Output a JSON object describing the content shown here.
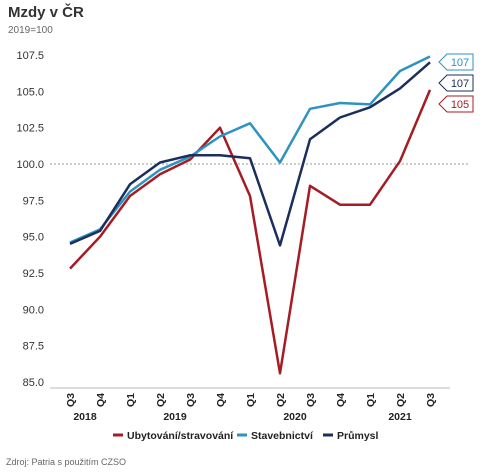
{
  "title": "Mzdy v ČR",
  "subtitle": "2019=100",
  "source": "Zdroj: Patria s použitím CZSO",
  "chart_data": {
    "type": "line",
    "categories": [
      "Q3",
      "Q4",
      "Q1",
      "Q2",
      "Q3",
      "Q4",
      "Q1",
      "Q2",
      "Q3",
      "Q4",
      "Q1",
      "Q2",
      "Q3"
    ],
    "year_labels": [
      {
        "label": "2018",
        "from": 0,
        "to": 1
      },
      {
        "label": "2019",
        "from": 2,
        "to": 5
      },
      {
        "label": "2020",
        "from": 6,
        "to": 9
      },
      {
        "label": "2021",
        "from": 10,
        "to": 12
      }
    ],
    "ylim": [
      85.0,
      107.5
    ],
    "yticks": [
      "107.5",
      "105.0",
      "102.5",
      "100.0",
      "97.5",
      "95.0",
      "92.5",
      "90.0",
      "87.5",
      "85.0"
    ],
    "reference_line": 100.0,
    "series": [
      {
        "name": "Ubytování/stravování",
        "color": "#a51c24",
        "values": [
          92.8,
          95.0,
          97.8,
          99.3,
          100.3,
          102.5,
          97.8,
          85.6,
          98.5,
          97.2,
          97.2,
          100.2,
          105.1
        ],
        "end_label": "105"
      },
      {
        "name": "Stavebnictví",
        "color": "#2e93c0",
        "values": [
          94.6,
          95.5,
          98.1,
          99.6,
          100.5,
          101.9,
          102.8,
          100.1,
          103.8,
          104.2,
          104.1,
          106.4,
          107.4
        ],
        "end_label": "107"
      },
      {
        "name": "Průmysl",
        "color": "#1b2f5c",
        "values": [
          94.5,
          95.4,
          98.6,
          100.1,
          100.6,
          100.6,
          100.4,
          94.4,
          101.7,
          103.2,
          103.9,
          105.2,
          107.0
        ],
        "end_label": "107"
      }
    ]
  }
}
